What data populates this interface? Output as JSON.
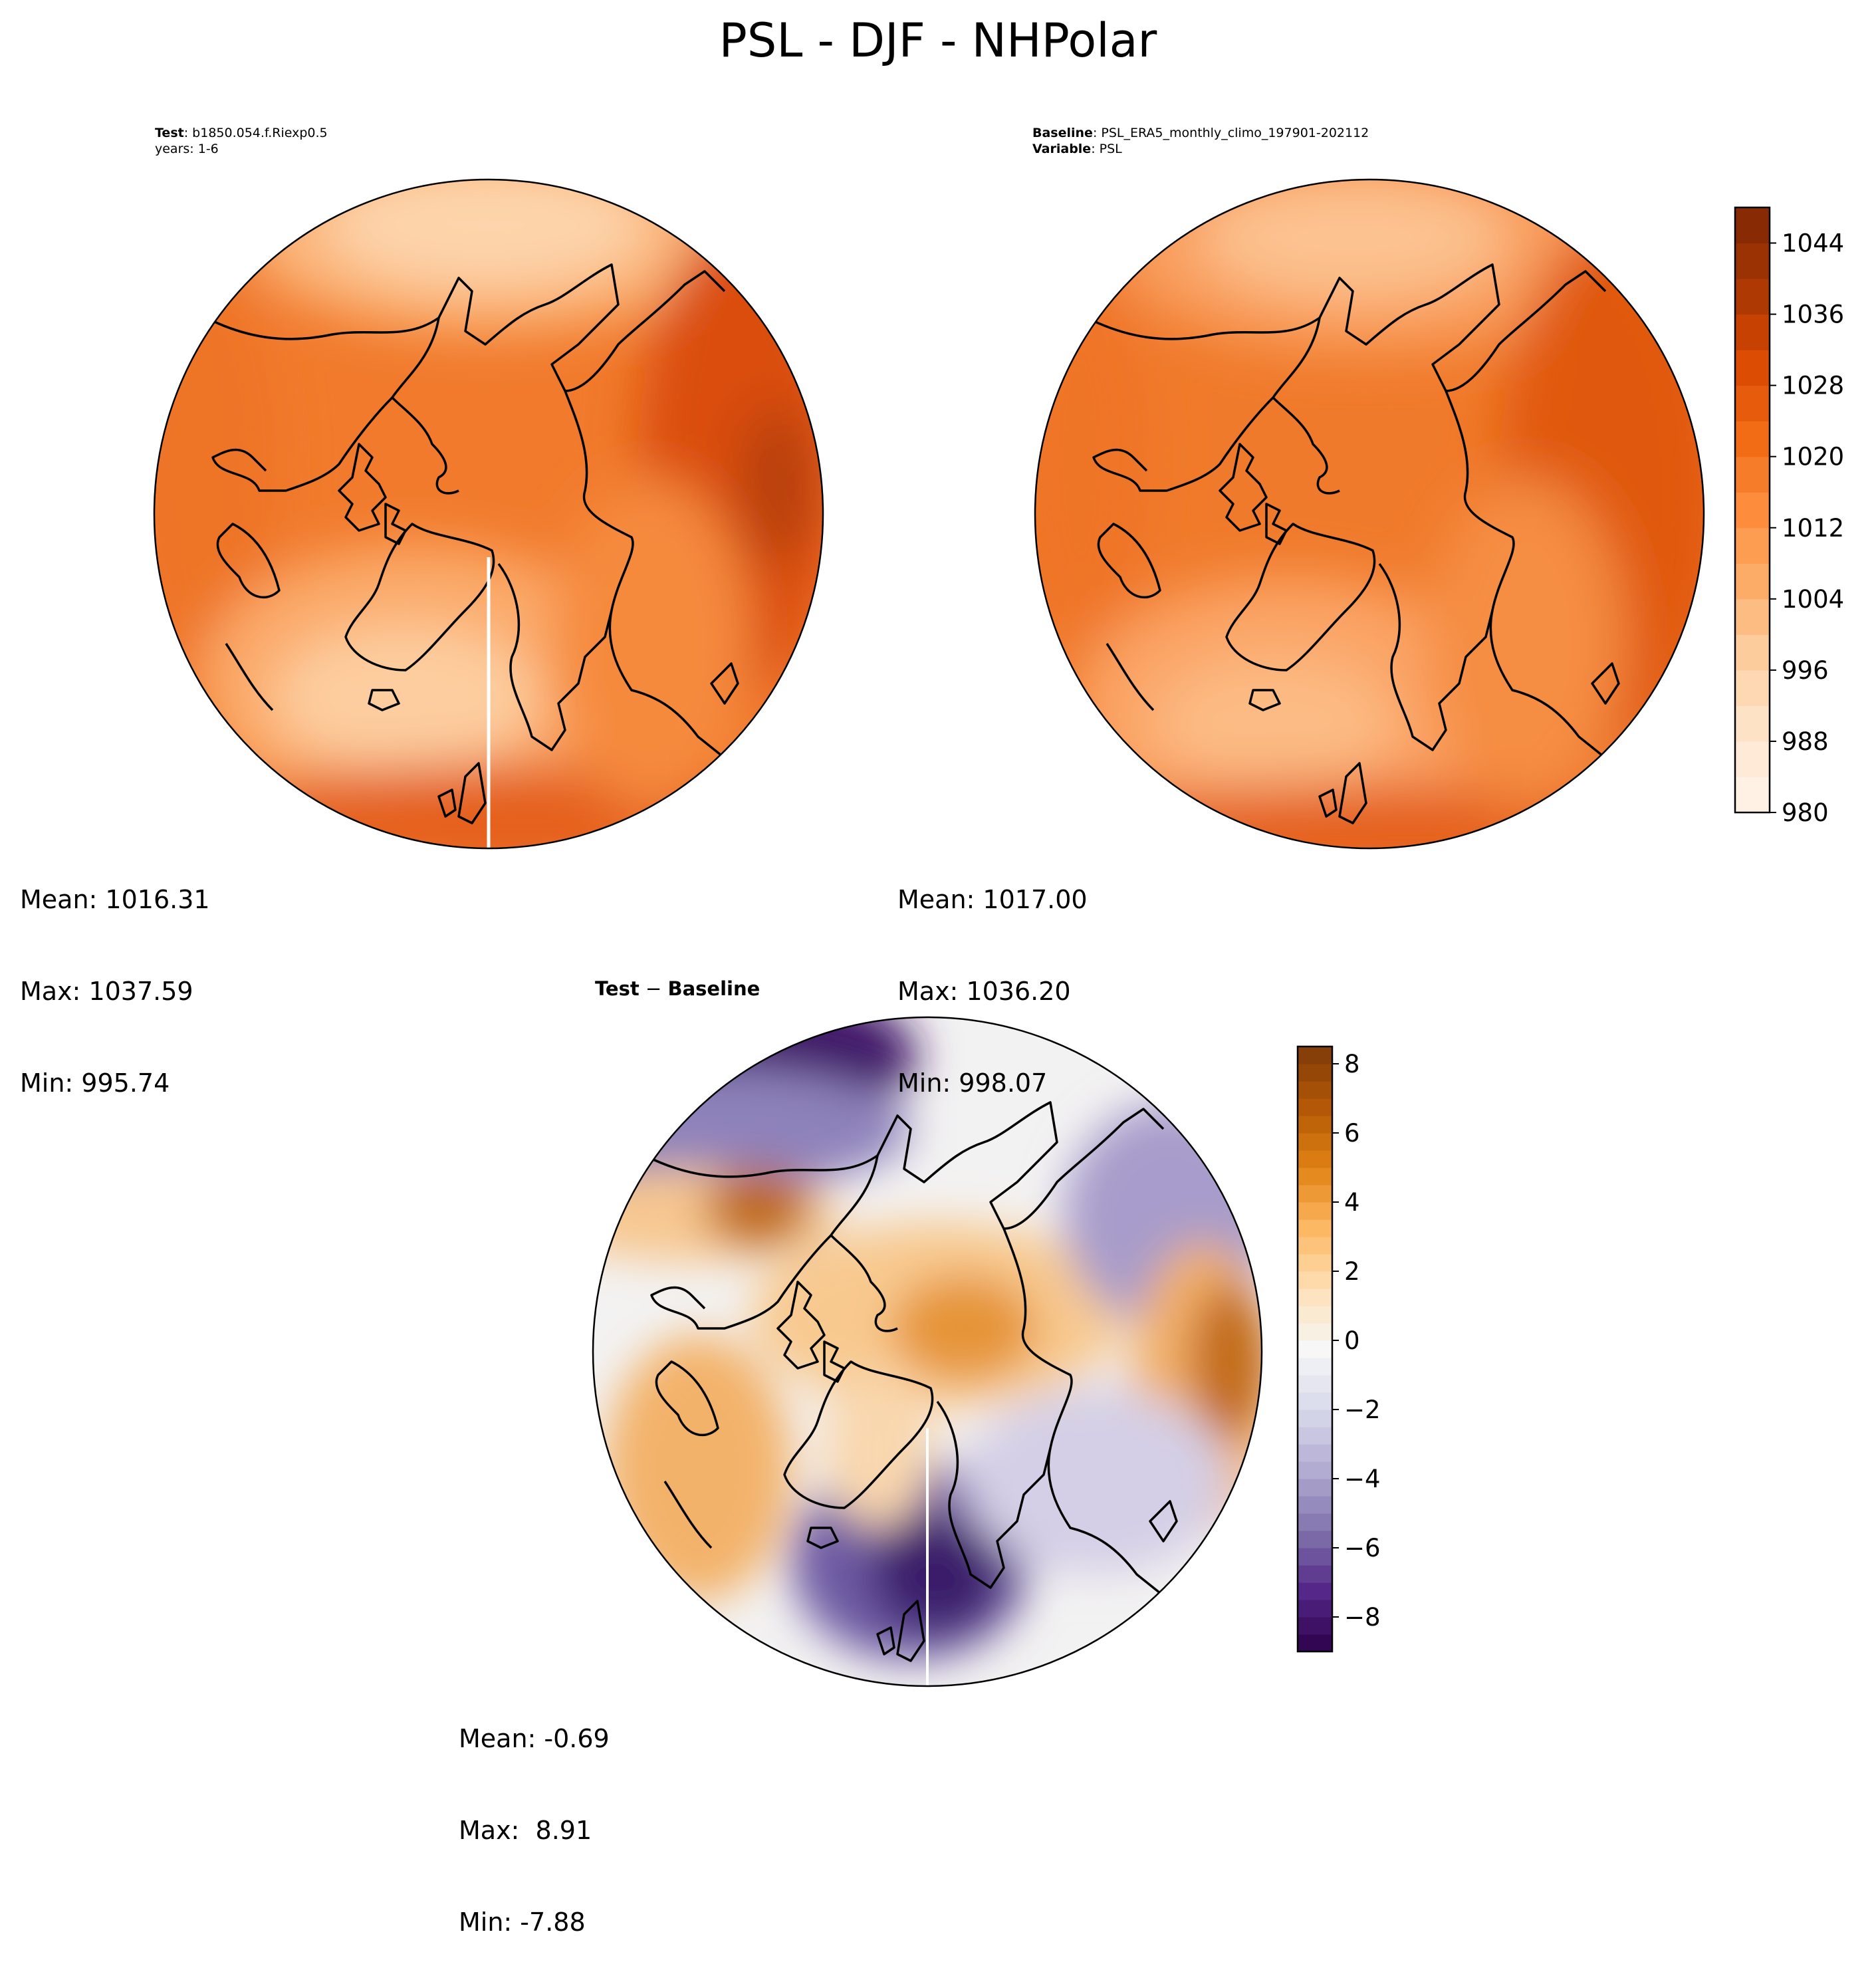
{
  "figure": {
    "title": "PSL - DJF - NHPolar"
  },
  "test_panel": {
    "label_key": "Test",
    "label_value": "b1850.054.f.Riexp0.5",
    "years": "years: 1-6",
    "stats": {
      "mean": "Mean: 1016.31",
      "max": "Max: 1037.59",
      "min": "Min: 995.74"
    }
  },
  "baseline_panel": {
    "label_key": "Baseline",
    "label_value": "PSL_ERA5_monthly_climo_197901-202112",
    "variable_key": "Variable",
    "variable_value": "PSL",
    "stats": {
      "mean": "Mean: 1017.00",
      "max": "Max: 1036.20",
      "min": "Min: 998.07"
    }
  },
  "difference_panel": {
    "label_test": "Test",
    "label_sep": " − ",
    "label_baseline": "Baseline",
    "stats": {
      "mean": "Mean: -0.69",
      "max": "Max:  8.91",
      "min": "Min: -7.88"
    }
  },
  "colorbar_main": {
    "colormap": "Oranges",
    "range": [
      980,
      1048
    ],
    "ticks": [
      "1044",
      "1036",
      "1028",
      "1020",
      "1012",
      "1004",
      "996",
      "988",
      "980"
    ],
    "tick_values": [
      1044,
      1036,
      1028,
      1020,
      1012,
      1004,
      996,
      988,
      980
    ]
  },
  "colorbar_diff": {
    "colormap": "PuOr_r",
    "range": [
      -9,
      8.5
    ],
    "ticks": [
      "8",
      "6",
      "4",
      "2",
      "0",
      "−2",
      "−4",
      "−6",
      "−8"
    ],
    "tick_values": [
      8,
      6,
      4,
      2,
      0,
      -2,
      -4,
      -6,
      -8
    ]
  },
  "colors": {
    "orange_light": "#fdd9b4",
    "orange_mid": "#f47e2e",
    "orange_dark": "#d4490b",
    "diff_purple": "#4b1e7e",
    "diff_brown": "#b35806"
  }
}
